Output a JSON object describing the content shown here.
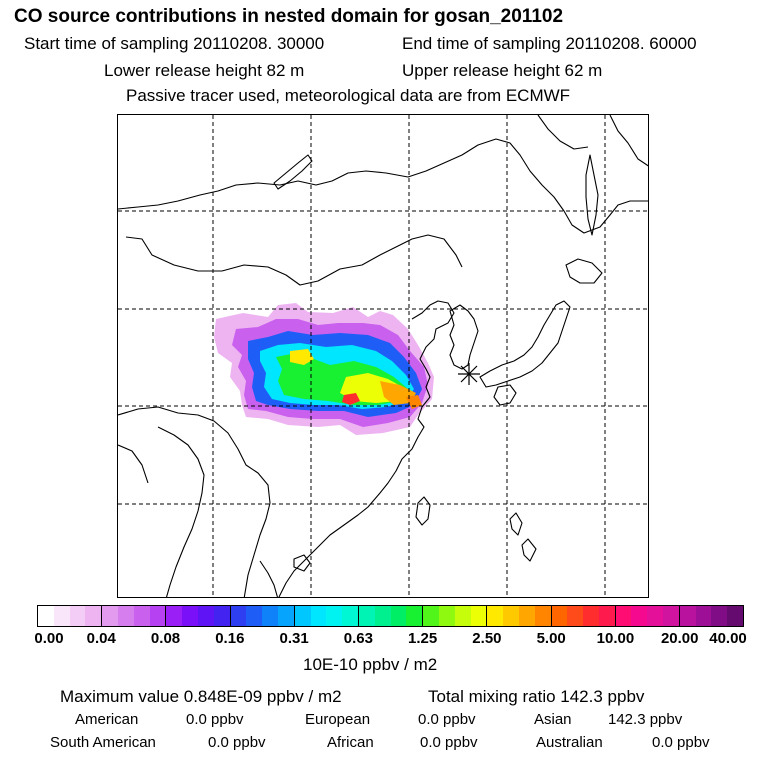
{
  "header": {
    "title": "CO  source contributions in nested domain for gosan_201102",
    "start_time": "Start time of sampling 20110208. 30000",
    "end_time": "End time of sampling 20110208. 60000",
    "lower_height": "Lower release height   82 m",
    "upper_height": "Upper release height   62 m",
    "tracer_note": "Passive tracer used, meteorological data are from ECMWF"
  },
  "map": {
    "receptor_marker": "star-icon",
    "colors": {
      "land_outline": "#000000",
      "grid": "#000000"
    }
  },
  "colorbar": {
    "ticks": [
      "0.00",
      "0.04",
      "0.08",
      "0.16",
      "0.31",
      "0.63",
      "1.25",
      "2.50",
      "5.00",
      "10.00",
      "20.00",
      "40.00"
    ],
    "unit": "10E-10 ppbv / m2",
    "colors": [
      "#ffffff",
      "#fae6fa",
      "#f4cdf6",
      "#eeb4f2",
      "#e39bf0",
      "#d67eee",
      "#c960ee",
      "#b641f2",
      "#9a1ff6",
      "#7a10f7",
      "#5e14f5",
      "#4323f0",
      "#2e3ff2",
      "#1f5ef6",
      "#0f82fa",
      "#06a4fc",
      "#00c8ff",
      "#00e6ff",
      "#00f3f0",
      "#00f7d3",
      "#00f4b3",
      "#00f08f",
      "#00ee66",
      "#18f032",
      "#52f519",
      "#8ffa10",
      "#c6fd0a",
      "#ecff05",
      "#ffe900",
      "#ffc900",
      "#ffa600",
      "#ff8500",
      "#ff6600",
      "#ff4a1a",
      "#ff2d2d",
      "#ff1a4d",
      "#ff0d73",
      "#f50a8f",
      "#e4109a",
      "#d014a0",
      "#b8129e",
      "#9c0f96",
      "#800c86",
      "#650a6e"
    ]
  },
  "summary": {
    "max_value": "Maximum value  0.848E-09 ppbv / m2",
    "total_mixing": "Total mixing ratio      142.3 ppbv",
    "sources": [
      {
        "name": "American",
        "value": "0.0 ppbv"
      },
      {
        "name": "European",
        "value": "0.0 ppbv"
      },
      {
        "name": "Asian",
        "value": "142.3 ppbv"
      },
      {
        "name": "South American",
        "value": "0.0 ppbv"
      },
      {
        "name": "African",
        "value": "0.0 ppbv"
      },
      {
        "name": "Australian",
        "value": "0.0 ppbv"
      }
    ]
  }
}
